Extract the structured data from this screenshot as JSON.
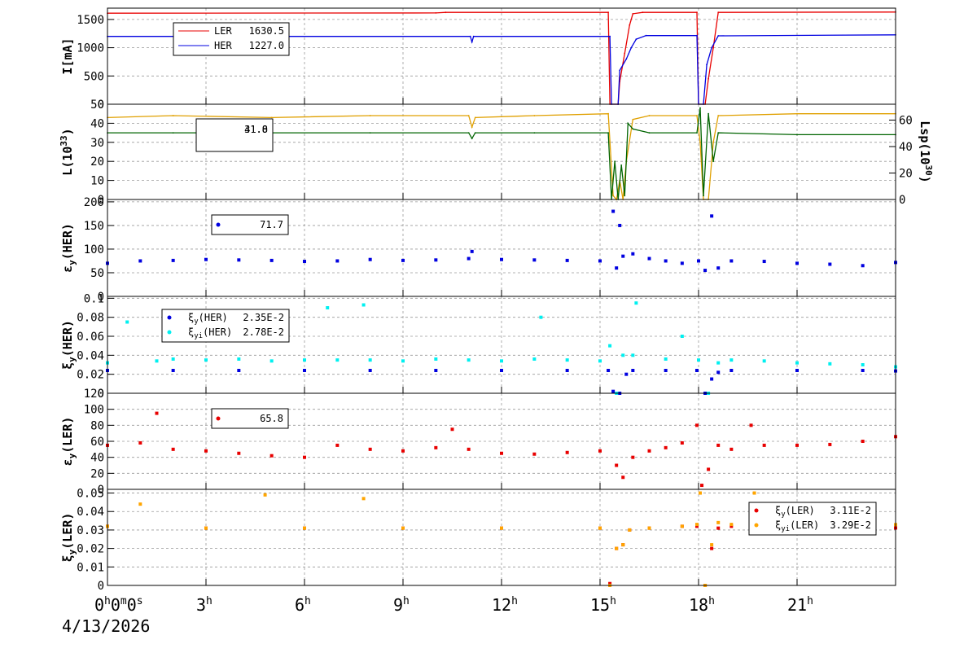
{
  "date_label": "4/13/2026",
  "x_axis": {
    "type": "time",
    "range_hours": [
      0,
      24
    ],
    "ticks": [
      {
        "hour": 0,
        "label": "0",
        "sup1": "h",
        "mid": "0",
        "sup2": "m",
        "end": "0",
        "sup3": "s"
      },
      {
        "hour": 3,
        "label": "3",
        "sup1": "h"
      },
      {
        "hour": 6,
        "label": "6",
        "sup1": "h"
      },
      {
        "hour": 9,
        "label": "9",
        "sup1": "h"
      },
      {
        "hour": 12,
        "label": "12",
        "sup1": "h"
      },
      {
        "hour": 15,
        "label": "15",
        "sup1": "h"
      },
      {
        "hour": 18,
        "label": "18",
        "sup1": "h"
      },
      {
        "hour": 21,
        "label": "21",
        "sup1": "h"
      }
    ]
  },
  "colors": {
    "red": "#e80000",
    "blue": "#0000e0",
    "gold": "#e0a000",
    "green": "#006400",
    "cyan": "#00f0f0",
    "orange": "#ffa500",
    "grid": "#9a9a9a"
  },
  "chart_data": [
    {
      "type": "line",
      "ylabel": "I[mA]",
      "ylim": [
        0,
        1700
      ],
      "yticks": [
        "0",
        "500",
        "1000",
        "1500"
      ],
      "grid": true,
      "legend": {
        "position": "top-left",
        "entries": [
          {
            "name": "LER",
            "value": "1630.5",
            "color": "red"
          },
          {
            "name": "HER",
            "value": "1227.0",
            "color": "blue"
          }
        ]
      },
      "series": [
        {
          "name": "LER",
          "color": "red",
          "mode": "line",
          "x": [
            0,
            10,
            10.3,
            15.25,
            15.3,
            15.55,
            15.6,
            15.75,
            15.9,
            16.0,
            16.3,
            17.95,
            18.0,
            18.2,
            18.3,
            18.45,
            18.6,
            24
          ],
          "y": [
            1610,
            1615,
            1625,
            1625,
            0,
            0,
            400,
            900,
            1400,
            1600,
            1625,
            1625,
            0,
            0,
            450,
            1000,
            1625,
            1630.5
          ]
        },
        {
          "name": "HER",
          "color": "blue",
          "mode": "line",
          "x": [
            0,
            11.05,
            11.1,
            11.15,
            15.3,
            15.35,
            15.55,
            15.6,
            15.8,
            15.95,
            16.1,
            16.4,
            17.95,
            18.0,
            18.15,
            18.25,
            18.4,
            18.6,
            24
          ],
          "y": [
            1200,
            1200,
            1100,
            1200,
            1200,
            0,
            0,
            600,
            800,
            1000,
            1150,
            1215,
            1215,
            0,
            0,
            700,
            1000,
            1210,
            1227
          ]
        }
      ]
    },
    {
      "type": "line",
      "ylabel": "L(10^33)",
      "ylabel_main": "L(10",
      "ylabel_sup": "33",
      "ylabel_end": ")",
      "ylim": [
        0,
        50
      ],
      "yticks": [
        "0",
        "10",
        "20",
        "30",
        "40",
        "50"
      ],
      "y2label": "Lsp(10^30)",
      "y2label_main": "Lsp(10",
      "y2label_sup": "30",
      "y2label_end": ")",
      "y2lim": [
        0,
        72
      ],
      "y2ticks": [
        "0",
        "20",
        "40",
        "60"
      ],
      "grid": true,
      "legend": {
        "position": "top-left",
        "entries": [
          {
            "text": "41.0"
          },
          {
            "text": "31.8"
          }
        ]
      },
      "series": [
        {
          "name": "",
          "color": "gold",
          "mode": "line",
          "x": [
            0,
            2,
            5,
            8,
            11,
            11.1,
            11.2,
            13,
            15.25,
            15.4,
            15.5,
            15.6,
            15.7,
            15.8,
            16.0,
            16.5,
            17.95,
            18.05,
            18.15,
            18.3,
            18.45,
            18.6,
            21,
            24
          ],
          "y": [
            43,
            44,
            43,
            44,
            44,
            38,
            43,
            44,
            45,
            2,
            0,
            10,
            0,
            20,
            42,
            44,
            44,
            30,
            0,
            0,
            30,
            44,
            45,
            45
          ]
        },
        {
          "name": "",
          "color": "green",
          "mode": "line",
          "x": [
            0,
            2,
            5,
            8,
            11,
            11.1,
            11.2,
            13,
            15.25,
            15.35,
            15.45,
            15.55,
            15.65,
            15.75,
            15.85,
            16.0,
            16.5,
            17.95,
            18.05,
            18.15,
            18.3,
            18.45,
            18.6,
            21,
            24
          ],
          "y": [
            35,
            35,
            35,
            35,
            35,
            32,
            35,
            35,
            35,
            0,
            20,
            0,
            18,
            2,
            40,
            37,
            35,
            35,
            48,
            2,
            45,
            20,
            35,
            34,
            34
          ]
        }
      ]
    },
    {
      "type": "scatter",
      "ylabel": "εy(HER)",
      "ylabel_main": "ε",
      "ylabel_sub": "y",
      "ylabel_end": "(HER)",
      "ylim": [
        0,
        205
      ],
      "yticks": [
        "0",
        "50",
        "100",
        "150",
        "200"
      ],
      "grid": true,
      "legend": {
        "position": "top-left",
        "entries": [
          {
            "value": "71.7",
            "color": "blue"
          }
        ]
      },
      "series": [
        {
          "name": "",
          "color": "blue",
          "mode": "scatter",
          "x": [
            0,
            1,
            2,
            3,
            4,
            5,
            6,
            7,
            8,
            9,
            10,
            11,
            11.1,
            12,
            13,
            14,
            15,
            15.4,
            15.5,
            15.6,
            15.7,
            16,
            16.5,
            17,
            17.5,
            18,
            18.2,
            18.4,
            18.6,
            19,
            20,
            21,
            22,
            23,
            24
          ],
          "y": [
            70,
            75,
            76,
            78,
            77,
            76,
            74,
            75,
            78,
            76,
            77,
            80,
            95,
            78,
            77,
            76,
            75,
            180,
            60,
            150,
            85,
            90,
            80,
            75,
            70,
            75,
            55,
            170,
            60,
            75,
            74,
            70,
            68,
            65,
            71.7
          ]
        }
      ]
    },
    {
      "type": "scatter",
      "ylabel": "ξy(HER)",
      "ylabel_main": "ξ",
      "ylabel_sub": "y",
      "ylabel_end": "(HER)",
      "ylim": [
        0,
        0.102
      ],
      "yticks": [
        "0",
        "0.02",
        "0.04",
        "0.06",
        "0.08",
        "0.1"
      ],
      "grid": true,
      "legend": {
        "position": "top-left",
        "entries": [
          {
            "main": "ξ",
            "sub": "y",
            "rest": "(HER)",
            "value": "2.35E-2",
            "color": "blue"
          },
          {
            "main": "ξ",
            "sub": "yi",
            "rest": "(HER)",
            "value": "2.78E-2",
            "color": "cyan"
          }
        ]
      },
      "series": [
        {
          "name": "ξy(HER)",
          "color": "blue",
          "mode": "scatter",
          "x": [
            0,
            2,
            4,
            6,
            8,
            10,
            12,
            14,
            15.25,
            15.4,
            15.6,
            15.8,
            16,
            17,
            17.95,
            18.2,
            18.4,
            18.6,
            19,
            21,
            23,
            24
          ],
          "y": [
            0.024,
            0.024,
            0.024,
            0.024,
            0.024,
            0.024,
            0.024,
            0.024,
            0.024,
            0.002,
            0.0,
            0.02,
            0.024,
            0.024,
            0.024,
            0.0,
            0.015,
            0.022,
            0.024,
            0.024,
            0.024,
            0.0235
          ]
        },
        {
          "name": "ξyi(HER)",
          "color": "cyan",
          "mode": "scatter",
          "x": [
            0,
            0.6,
            1.5,
            2,
            3,
            4,
            5,
            6,
            6.7,
            7,
            7.8,
            8,
            9,
            10,
            11,
            12,
            13,
            13.2,
            14,
            15,
            15.3,
            15.5,
            15.7,
            16,
            16.1,
            17,
            17.5,
            18,
            18.3,
            18.6,
            19,
            20,
            21,
            22,
            23,
            24
          ],
          "y": [
            0.032,
            0.075,
            0.034,
            0.036,
            0.035,
            0.036,
            0.034,
            0.035,
            0.09,
            0.035,
            0.093,
            0.035,
            0.034,
            0.036,
            0.035,
            0.034,
            0.036,
            0.08,
            0.035,
            0.034,
            0.05,
            0.0,
            0.04,
            0.04,
            0.095,
            0.036,
            0.06,
            0.035,
            0.0,
            0.032,
            0.035,
            0.034,
            0.032,
            0.031,
            0.03,
            0.0278
          ]
        }
      ]
    },
    {
      "type": "scatter",
      "ylabel": "εy(LER)",
      "ylabel_main": "ε",
      "ylabel_sub": "y",
      "ylabel_end": "(LER)",
      "ylim": [
        0,
        120
      ],
      "yticks": [
        "0",
        "20",
        "40",
        "60",
        "80",
        "100",
        "120"
      ],
      "grid": true,
      "legend": {
        "position": "top-left",
        "entries": [
          {
            "value": "65.8",
            "color": "red"
          }
        ]
      },
      "series": [
        {
          "name": "",
          "color": "red",
          "mode": "scatter",
          "x": [
            0,
            1,
            1.5,
            2,
            3,
            4,
            5,
            6,
            7,
            8,
            9,
            10,
            10.5,
            11,
            12,
            13,
            14,
            15,
            15.5,
            15.7,
            16,
            16.5,
            17,
            17.5,
            17.95,
            18.1,
            18.3,
            18.6,
            19,
            19.6,
            20,
            21,
            22,
            23,
            24
          ],
          "y": [
            55,
            58,
            95,
            50,
            48,
            45,
            42,
            40,
            55,
            50,
            48,
            52,
            75,
            50,
            45,
            44,
            46,
            48,
            30,
            15,
            40,
            48,
            52,
            58,
            80,
            5,
            25,
            55,
            50,
            80,
            55,
            55,
            56,
            60,
            65.8
          ]
        }
      ]
    },
    {
      "type": "scatter",
      "ylabel": "ξy(LER)",
      "ylabel_main": "ξ",
      "ylabel_sub": "y",
      "ylabel_end": "(LER)",
      "ylim": [
        0,
        0.052
      ],
      "yticks": [
        "0",
        "0.01",
        "0.02",
        "0.03",
        "0.04",
        "0.05"
      ],
      "grid": true,
      "legend": {
        "position": "top-right",
        "entries": [
          {
            "main": "ξ",
            "sub": "y",
            "rest": "(LER)",
            "value": "3.11E-2",
            "color": "red"
          },
          {
            "main": "ξ",
            "sub": "yi",
            "rest": "(LER)",
            "value": "3.29E-2",
            "color": "orange"
          }
        ]
      },
      "series": [
        {
          "name": "ξy(LER)",
          "color": "red",
          "mode": "scatter",
          "x": [
            0,
            3,
            6,
            9,
            12,
            15,
            15.3,
            15.5,
            15.7,
            15.9,
            16.5,
            17.5,
            17.95,
            18.2,
            18.4,
            18.6,
            19,
            21,
            24
          ],
          "y": [
            0.032,
            0.031,
            0.031,
            0.031,
            0.031,
            0.031,
            0.001,
            0.02,
            0.022,
            0.03,
            0.031,
            0.032,
            0.032,
            0.0,
            0.02,
            0.031,
            0.032,
            0.032,
            0.0311
          ]
        },
        {
          "name": "ξyi(LER)",
          "color": "orange",
          "mode": "scatter",
          "x": [
            0,
            1,
            3,
            4.8,
            6,
            7.8,
            9,
            12,
            15,
            15.3,
            15.5,
            15.7,
            15.9,
            16.5,
            17.5,
            17.95,
            18.05,
            18.2,
            18.4,
            18.6,
            19,
            19.7,
            21,
            24
          ],
          "y": [
            0.032,
            0.044,
            0.031,
            0.049,
            0.031,
            0.047,
            0.031,
            0.031,
            0.031,
            0.0,
            0.02,
            0.022,
            0.03,
            0.031,
            0.032,
            0.033,
            0.05,
            0.0,
            0.022,
            0.034,
            0.033,
            0.05,
            0.033,
            0.0329
          ]
        }
      ]
    }
  ]
}
